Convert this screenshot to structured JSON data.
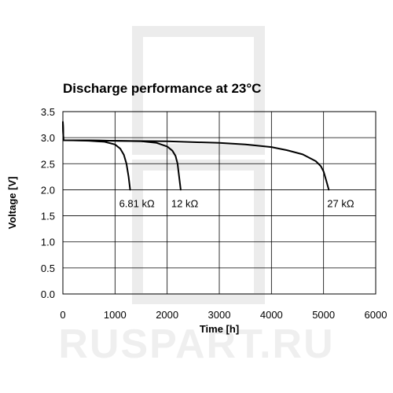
{
  "watermark": {
    "text": "RUSPART.RU"
  },
  "chart_data": {
    "type": "line",
    "title": "Discharge performance at 23°C",
    "xlabel": "Time [h]",
    "ylabel": "Voltage [V]",
    "xlim": [
      0,
      6000
    ],
    "ylim": [
      0,
      3.5
    ],
    "x_ticks": [
      0,
      1000,
      2000,
      3000,
      4000,
      5000,
      6000
    ],
    "y_ticks": [
      0.0,
      0.5,
      1.0,
      1.5,
      2.0,
      2.5,
      3.0,
      3.5
    ],
    "x_tick_labels": [
      "0",
      "1000",
      "2000",
      "3000",
      "4000",
      "5000",
      "6000"
    ],
    "y_tick_labels": [
      "0.0",
      "0.5",
      "1.0",
      "1.5",
      "2.0",
      "2.5",
      "3.0",
      "3.5"
    ],
    "grid": true,
    "series": [
      {
        "name": "6.81 kΩ",
        "x": [
          0,
          10,
          200,
          500,
          800,
          1000,
          1100,
          1170,
          1220,
          1260,
          1290
        ],
        "y": [
          3.3,
          2.95,
          2.95,
          2.94,
          2.92,
          2.87,
          2.79,
          2.67,
          2.5,
          2.25,
          2.0
        ]
      },
      {
        "name": "12 kΩ",
        "x": [
          0,
          10,
          500,
          1000,
          1500,
          1800,
          2000,
          2100,
          2160,
          2200,
          2230,
          2260
        ],
        "y": [
          3.3,
          2.95,
          2.95,
          2.94,
          2.93,
          2.9,
          2.83,
          2.75,
          2.65,
          2.5,
          2.25,
          2.0
        ]
      },
      {
        "name": "27 kΩ",
        "x": [
          0,
          10,
          1000,
          2000,
          3000,
          3500,
          4000,
          4300,
          4600,
          4850,
          4950,
          5000,
          5050,
          5100
        ],
        "y": [
          3.3,
          2.95,
          2.94,
          2.93,
          2.9,
          2.87,
          2.82,
          2.76,
          2.68,
          2.55,
          2.45,
          2.35,
          2.18,
          2.0
        ]
      }
    ]
  }
}
